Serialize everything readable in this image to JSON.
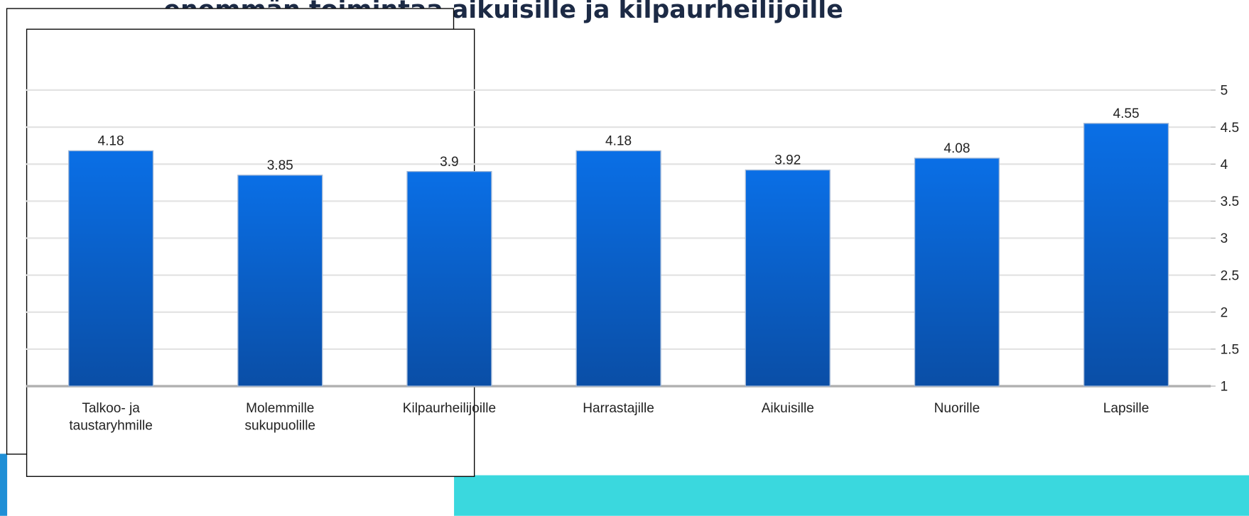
{
  "chart_data": {
    "type": "bar",
    "title": "enemmän toimintaa aikuisille ja kilpaurheilijoille",
    "categories": [
      "Talkoo- ja\ntaustaryhmille",
      "Molemmille\nsukupuolille",
      "Kilpaurheilijoille",
      "Harrastajille",
      "Aikuisille",
      "Nuorille",
      "Lapsille"
    ],
    "values": [
      4.18,
      3.85,
      3.9,
      4.18,
      3.92,
      4.08,
      4.55
    ],
    "color": "#0a66d4",
    "ylim": [
      1,
      5
    ],
    "yticks": [
      1,
      1.5,
      2,
      2.5,
      3,
      3.5,
      4,
      4.5,
      5
    ],
    "grid": true
  }
}
